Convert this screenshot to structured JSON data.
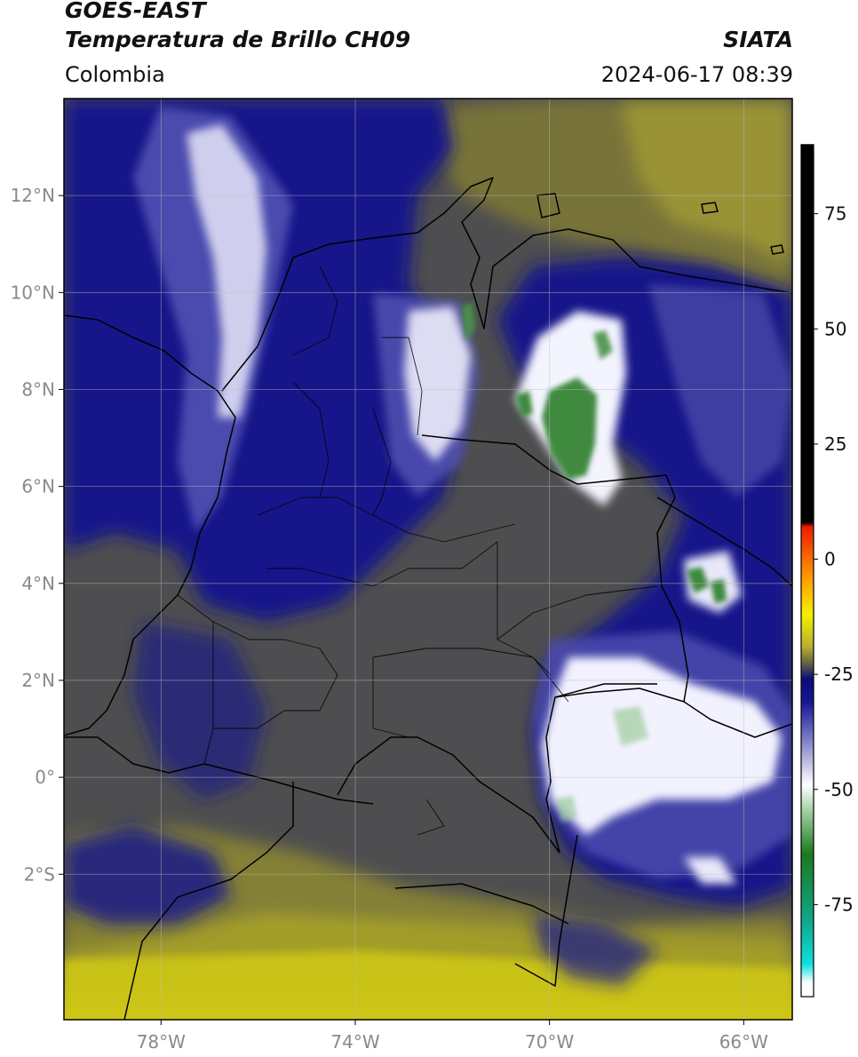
{
  "header": {
    "satellite": "GOES-EAST",
    "product": "Temperatura de Brillo CH09",
    "brand": "SIATA",
    "region": "Colombia",
    "timestamp": "2024-06-17 08:39"
  },
  "map": {
    "lat_range": [
      -5,
      14
    ],
    "lon_range": [
      -80,
      -65
    ],
    "lat_ticks": [
      {
        "value": 12,
        "label": "12°N"
      },
      {
        "value": 10,
        "label": "10°N"
      },
      {
        "value": 8,
        "label": "8°N"
      },
      {
        "value": 6,
        "label": "6°N"
      },
      {
        "value": 4,
        "label": "4°N"
      },
      {
        "value": 2,
        "label": "2°N"
      },
      {
        "value": 0,
        "label": "0°"
      },
      {
        "value": -2,
        "label": "2°S"
      }
    ],
    "lon_ticks": [
      {
        "value": -78,
        "label": "78°W"
      },
      {
        "value": -74,
        "label": "74°W"
      },
      {
        "value": -70,
        "label": "70°W"
      },
      {
        "value": -66,
        "label": "66°W"
      }
    ],
    "grid": true
  },
  "colorbar": {
    "range": [
      -100,
      100
    ],
    "ticks": [
      {
        "value": 75,
        "label": "75"
      },
      {
        "value": 50,
        "label": "50"
      },
      {
        "value": 25,
        "label": "25"
      },
      {
        "value": 0,
        "label": "0"
      },
      {
        "value": -25,
        "label": "-25"
      },
      {
        "value": -50,
        "label": "-50"
      },
      {
        "value": -75,
        "label": "-75"
      }
    ],
    "stops": [
      {
        "value": 90,
        "color": "#000000"
      },
      {
        "value": 8,
        "color": "#000000"
      },
      {
        "value": 7,
        "color": "#ee1c00"
      },
      {
        "value": -4,
        "color": "#ff9a00"
      },
      {
        "value": -12,
        "color": "#f5ef00"
      },
      {
        "value": -19,
        "color": "#b8b030"
      },
      {
        "value": -23,
        "color": "#5a5a48"
      },
      {
        "value": -26,
        "color": "#0c0c7a"
      },
      {
        "value": -31,
        "color": "#161694"
      },
      {
        "value": -40,
        "color": "#8888cc"
      },
      {
        "value": -49,
        "color": "#ffffff"
      },
      {
        "value": -56,
        "color": "#8fc48f"
      },
      {
        "value": -64,
        "color": "#1c7a1c"
      },
      {
        "value": -79,
        "color": "#10a890"
      },
      {
        "value": -88,
        "color": "#10e0e0"
      },
      {
        "value": -92,
        "color": "#ffffff"
      },
      {
        "value": -95,
        "color": "#ffffff"
      }
    ]
  },
  "colors": {
    "warm_background": "#c9c214",
    "mid_gray": "#4e4e50",
    "deep_blue": "#13138a",
    "cloud_white": "#f4f4ff",
    "cold_green": "#3a8a3a"
  }
}
